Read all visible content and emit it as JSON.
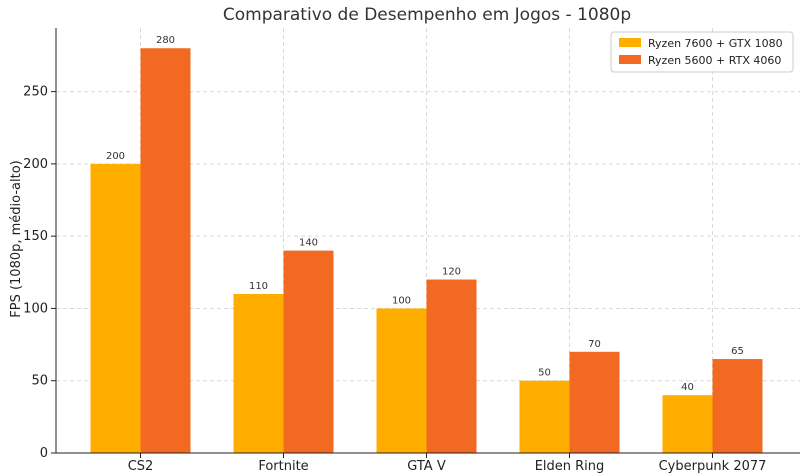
{
  "chart_data": {
    "type": "bar",
    "title": "Comparativo de Desempenho em Jogos - 1080p",
    "xlabel": "",
    "ylabel": "FPS (1080p, médio-alto)",
    "categories": [
      "CS2",
      "Fortnite",
      "GTA V",
      "Elden Ring",
      "Cyberpunk 2077"
    ],
    "series": [
      {
        "name": "Ryzen 7600 + GTX 1080",
        "color": "#FFAE00",
        "values": [
          200,
          110,
          100,
          50,
          40
        ]
      },
      {
        "name": "Ryzen 5600 + RTX 4060",
        "color": "#F26A22",
        "values": [
          280,
          140,
          120,
          70,
          65
        ]
      }
    ],
    "ylim": [
      0,
      294
    ],
    "yticks": [
      0,
      50,
      100,
      150,
      200,
      250
    ],
    "grid": true,
    "legend_position": "top-right"
  }
}
